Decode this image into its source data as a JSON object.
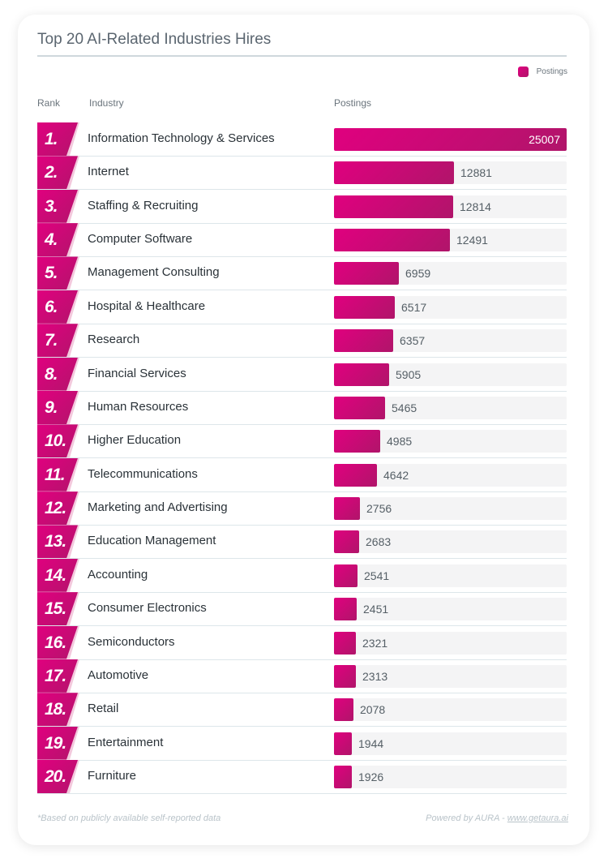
{
  "title": "Top 20 AI-Related Industries Hires",
  "legend": {
    "label": "Postings",
    "color": "#d0087a"
  },
  "headers": {
    "rank": "Rank",
    "industry": "Industry",
    "postings": "Postings"
  },
  "footer": {
    "note": "*Based on publicly available self-reported data",
    "powered": "Powered by AURA - ",
    "link": "www.getaura.ai"
  },
  "chart_data": {
    "type": "bar",
    "orientation": "horizontal",
    "title": "Top 20 AI-Related Industries Hires",
    "xlim": [
      0,
      25007
    ],
    "series": [
      {
        "name": "Postings",
        "color": "#d0087a"
      }
    ],
    "rows": [
      {
        "rank": "1.",
        "industry": "Information Technology & Services",
        "value": 25007
      },
      {
        "rank": "2.",
        "industry": "Internet",
        "value": 12881
      },
      {
        "rank": "3.",
        "industry": "Staffing & Recruiting",
        "value": 12814
      },
      {
        "rank": "4.",
        "industry": "Computer Software",
        "value": 12491
      },
      {
        "rank": "5.",
        "industry": "Management Consulting",
        "value": 6959
      },
      {
        "rank": "6.",
        "industry": "Hospital & Healthcare",
        "value": 6517
      },
      {
        "rank": "7.",
        "industry": "Research",
        "value": 6357
      },
      {
        "rank": "8.",
        "industry": "Financial Services",
        "value": 5905
      },
      {
        "rank": "9.",
        "industry": "Human Resources",
        "value": 5465
      },
      {
        "rank": "10.",
        "industry": "Higher Education",
        "value": 4985
      },
      {
        "rank": "11.",
        "industry": "Telecommunications",
        "value": 4642
      },
      {
        "rank": "12.",
        "industry": "Marketing and Advertising",
        "value": 2756
      },
      {
        "rank": "13.",
        "industry": "Education Management",
        "value": 2683
      },
      {
        "rank": "14.",
        "industry": "Accounting",
        "value": 2541
      },
      {
        "rank": "15.",
        "industry": "Consumer Electronics",
        "value": 2451
      },
      {
        "rank": "16.",
        "industry": "Semiconductors",
        "value": 2321
      },
      {
        "rank": "17.",
        "industry": "Automotive",
        "value": 2313
      },
      {
        "rank": "18.",
        "industry": "Retail",
        "value": 2078
      },
      {
        "rank": "19.",
        "industry": "Entertainment",
        "value": 1944
      },
      {
        "rank": "20.",
        "industry": "Furniture",
        "value": 1926
      }
    ]
  }
}
